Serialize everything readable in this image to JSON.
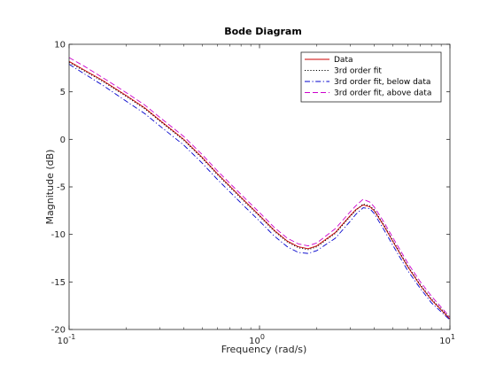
{
  "chart_data": {
    "type": "line",
    "title": "Bode Diagram",
    "xlabel": "Frequency  (rad/s)",
    "ylabel": "Magnitude (dB)",
    "xscale": "log",
    "xlim": [
      0.1,
      10
    ],
    "ylim": [
      -20,
      10
    ],
    "grid": false,
    "legend_position": "top-right",
    "x_ticks": [
      {
        "value": 0.1,
        "base": "10",
        "exp": "-1"
      },
      {
        "value": 1,
        "base": "10",
        "exp": "0"
      },
      {
        "value": 10,
        "base": "10",
        "exp": "1"
      }
    ],
    "y_ticks": [
      10,
      5,
      0,
      -5,
      -10,
      -15,
      -20
    ],
    "x": [
      0.1,
      0.12,
      0.15,
      0.2,
      0.25,
      0.3,
      0.4,
      0.5,
      0.6,
      0.8,
      1.0,
      1.2,
      1.4,
      1.6,
      1.8,
      2.0,
      2.5,
      3.0,
      3.2,
      3.5,
      3.8,
      4.0,
      4.5,
      5.0,
      6.0,
      7.0,
      8.0,
      10.0
    ],
    "series": [
      {
        "name": "Data",
        "color": "#cc0000",
        "dash": "solid",
        "values": [
          8.2,
          7.3,
          6.2,
          4.6,
          3.3,
          2.0,
          0.0,
          -1.9,
          -3.6,
          -6.1,
          -8.0,
          -9.6,
          -10.7,
          -11.3,
          -11.5,
          -11.2,
          -9.8,
          -8.0,
          -7.4,
          -6.9,
          -7.1,
          -7.5,
          -9.1,
          -10.7,
          -13.4,
          -15.4,
          -16.9,
          -18.9
        ]
      },
      {
        "name": "3rd order fit",
        "color": "#000000",
        "dash": "dotted",
        "values": [
          8.1,
          7.2,
          6.1,
          4.5,
          3.2,
          1.9,
          -0.1,
          -2.0,
          -3.7,
          -6.2,
          -8.1,
          -9.7,
          -10.8,
          -11.4,
          -11.6,
          -11.3,
          -9.9,
          -8.1,
          -7.5,
          -6.8,
          -7.0,
          -7.4,
          -9.0,
          -10.6,
          -13.3,
          -15.3,
          -16.8,
          -18.8
        ]
      },
      {
        "name": "3rd order fit, below data",
        "color": "#0000cc",
        "dash": "dashdot",
        "values": [
          7.9,
          6.9,
          5.7,
          4.0,
          2.7,
          1.4,
          -0.6,
          -2.5,
          -4.2,
          -6.7,
          -8.6,
          -10.2,
          -11.3,
          -11.9,
          -12.0,
          -11.7,
          -10.4,
          -8.6,
          -7.9,
          -7.2,
          -7.3,
          -7.8,
          -9.5,
          -11.1,
          -13.8,
          -15.7,
          -17.2,
          -19.0
        ]
      },
      {
        "name": "3rd order fit, above data",
        "color": "#cc00cc",
        "dash": "dashed",
        "values": [
          8.6,
          7.7,
          6.5,
          4.9,
          3.6,
          2.3,
          0.3,
          -1.6,
          -3.3,
          -5.8,
          -7.7,
          -9.3,
          -10.4,
          -11.0,
          -11.2,
          -10.9,
          -9.4,
          -7.6,
          -7.0,
          -6.3,
          -6.6,
          -7.1,
          -8.7,
          -10.3,
          -13.0,
          -15.0,
          -16.5,
          -18.7
        ]
      }
    ]
  }
}
